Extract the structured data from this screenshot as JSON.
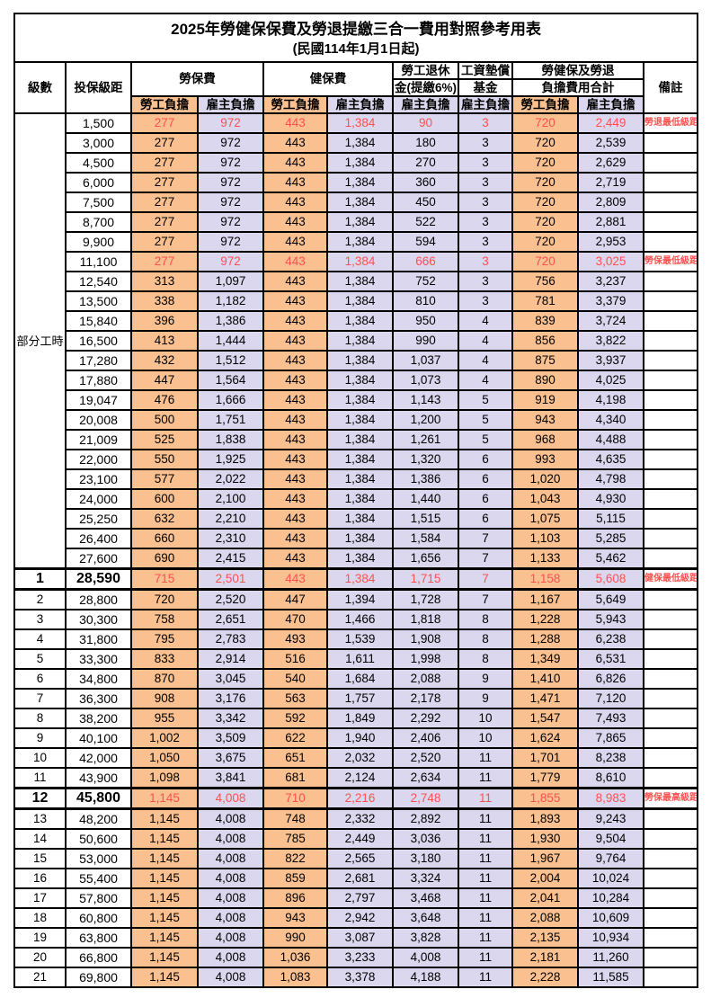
{
  "title": "2025年勞健保保費及勞退提繳三合一費用對照參考用表",
  "subtitle": "(民國114年1月1日起)",
  "colors": {
    "employee_column_bg": "#FAC090",
    "employer_column_bg": "#DBD7EE",
    "highlight_text": "#FF5050",
    "grid_line": "#000000"
  },
  "header": {
    "level": "級數",
    "bracket": "投保級距",
    "labor_insurance": "勞保費",
    "health_insurance": "健保費",
    "pension_line1": "勞工退休",
    "pension_line2": "金(提繳6%)",
    "wage_fund_line1": "工資墊償",
    "wage_fund_line2": "基金",
    "total_line1": "勞健保及勞退",
    "total_line2": "負擔費用合計",
    "remark": "備註",
    "employee": "勞工負擔",
    "employer": "雇主負擔"
  },
  "part_time_label": "部分工時",
  "rows": [
    {
      "level": "",
      "bracket": "1,500",
      "li_emp": "277",
      "li_er": "972",
      "hi_emp": "443",
      "hi_er": "1,384",
      "pension": "90",
      "fund": "3",
      "tot_emp": "720",
      "tot_er": "2,449",
      "remark": "勞退最低級距",
      "highlight": true,
      "bold": false
    },
    {
      "level": "",
      "bracket": "3,000",
      "li_emp": "277",
      "li_er": "972",
      "hi_emp": "443",
      "hi_er": "1,384",
      "pension": "180",
      "fund": "3",
      "tot_emp": "720",
      "tot_er": "2,539",
      "remark": "",
      "highlight": false,
      "bold": false
    },
    {
      "level": "",
      "bracket": "4,500",
      "li_emp": "277",
      "li_er": "972",
      "hi_emp": "443",
      "hi_er": "1,384",
      "pension": "270",
      "fund": "3",
      "tot_emp": "720",
      "tot_er": "2,629",
      "remark": "",
      "highlight": false,
      "bold": false
    },
    {
      "level": "",
      "bracket": "6,000",
      "li_emp": "277",
      "li_er": "972",
      "hi_emp": "443",
      "hi_er": "1,384",
      "pension": "360",
      "fund": "3",
      "tot_emp": "720",
      "tot_er": "2,719",
      "remark": "",
      "highlight": false,
      "bold": false
    },
    {
      "level": "",
      "bracket": "7,500",
      "li_emp": "277",
      "li_er": "972",
      "hi_emp": "443",
      "hi_er": "1,384",
      "pension": "450",
      "fund": "3",
      "tot_emp": "720",
      "tot_er": "2,809",
      "remark": "",
      "highlight": false,
      "bold": false
    },
    {
      "level": "",
      "bracket": "8,700",
      "li_emp": "277",
      "li_er": "972",
      "hi_emp": "443",
      "hi_er": "1,384",
      "pension": "522",
      "fund": "3",
      "tot_emp": "720",
      "tot_er": "2,881",
      "remark": "",
      "highlight": false,
      "bold": false
    },
    {
      "level": "",
      "bracket": "9,900",
      "li_emp": "277",
      "li_er": "972",
      "hi_emp": "443",
      "hi_er": "1,384",
      "pension": "594",
      "fund": "3",
      "tot_emp": "720",
      "tot_er": "2,953",
      "remark": "",
      "highlight": false,
      "bold": false
    },
    {
      "level": "",
      "bracket": "11,100",
      "li_emp": "277",
      "li_er": "972",
      "hi_emp": "443",
      "hi_er": "1,384",
      "pension": "666",
      "fund": "3",
      "tot_emp": "720",
      "tot_er": "3,025",
      "remark": "勞保最低級距",
      "highlight": true,
      "bold": false
    },
    {
      "level": "",
      "bracket": "12,540",
      "li_emp": "313",
      "li_er": "1,097",
      "hi_emp": "443",
      "hi_er": "1,384",
      "pension": "752",
      "fund": "3",
      "tot_emp": "756",
      "tot_er": "3,237",
      "remark": "",
      "highlight": false,
      "bold": false
    },
    {
      "level": "",
      "bracket": "13,500",
      "li_emp": "338",
      "li_er": "1,182",
      "hi_emp": "443",
      "hi_er": "1,384",
      "pension": "810",
      "fund": "3",
      "tot_emp": "781",
      "tot_er": "3,379",
      "remark": "",
      "highlight": false,
      "bold": false
    },
    {
      "level": "",
      "bracket": "15,840",
      "li_emp": "396",
      "li_er": "1,386",
      "hi_emp": "443",
      "hi_er": "1,384",
      "pension": "950",
      "fund": "4",
      "tot_emp": "839",
      "tot_er": "3,724",
      "remark": "",
      "highlight": false,
      "bold": false
    },
    {
      "level": "",
      "bracket": "16,500",
      "li_emp": "413",
      "li_er": "1,444",
      "hi_emp": "443",
      "hi_er": "1,384",
      "pension": "990",
      "fund": "4",
      "tot_emp": "856",
      "tot_er": "3,822",
      "remark": "",
      "highlight": false,
      "bold": false
    },
    {
      "level": "",
      "bracket": "17,280",
      "li_emp": "432",
      "li_er": "1,512",
      "hi_emp": "443",
      "hi_er": "1,384",
      "pension": "1,037",
      "fund": "4",
      "tot_emp": "875",
      "tot_er": "3,937",
      "remark": "",
      "highlight": false,
      "bold": false
    },
    {
      "level": "",
      "bracket": "17,880",
      "li_emp": "447",
      "li_er": "1,564",
      "hi_emp": "443",
      "hi_er": "1,384",
      "pension": "1,073",
      "fund": "4",
      "tot_emp": "890",
      "tot_er": "4,025",
      "remark": "",
      "highlight": false,
      "bold": false
    },
    {
      "level": "",
      "bracket": "19,047",
      "li_emp": "476",
      "li_er": "1,666",
      "hi_emp": "443",
      "hi_er": "1,384",
      "pension": "1,143",
      "fund": "5",
      "tot_emp": "919",
      "tot_er": "4,198",
      "remark": "",
      "highlight": false,
      "bold": false
    },
    {
      "level": "",
      "bracket": "20,008",
      "li_emp": "500",
      "li_er": "1,751",
      "hi_emp": "443",
      "hi_er": "1,384",
      "pension": "1,200",
      "fund": "5",
      "tot_emp": "943",
      "tot_er": "4,340",
      "remark": "",
      "highlight": false,
      "bold": false
    },
    {
      "level": "",
      "bracket": "21,009",
      "li_emp": "525",
      "li_er": "1,838",
      "hi_emp": "443",
      "hi_er": "1,384",
      "pension": "1,261",
      "fund": "5",
      "tot_emp": "968",
      "tot_er": "4,488",
      "remark": "",
      "highlight": false,
      "bold": false
    },
    {
      "level": "",
      "bracket": "22,000",
      "li_emp": "550",
      "li_er": "1,925",
      "hi_emp": "443",
      "hi_er": "1,384",
      "pension": "1,320",
      "fund": "6",
      "tot_emp": "993",
      "tot_er": "4,635",
      "remark": "",
      "highlight": false,
      "bold": false
    },
    {
      "level": "",
      "bracket": "23,100",
      "li_emp": "577",
      "li_er": "2,022",
      "hi_emp": "443",
      "hi_er": "1,384",
      "pension": "1,386",
      "fund": "6",
      "tot_emp": "1,020",
      "tot_er": "4,798",
      "remark": "",
      "highlight": false,
      "bold": false
    },
    {
      "level": "",
      "bracket": "24,000",
      "li_emp": "600",
      "li_er": "2,100",
      "hi_emp": "443",
      "hi_er": "1,384",
      "pension": "1,440",
      "fund": "6",
      "tot_emp": "1,043",
      "tot_er": "4,930",
      "remark": "",
      "highlight": false,
      "bold": false
    },
    {
      "level": "",
      "bracket": "25,250",
      "li_emp": "632",
      "li_er": "2,210",
      "hi_emp": "443",
      "hi_er": "1,384",
      "pension": "1,515",
      "fund": "6",
      "tot_emp": "1,075",
      "tot_er": "5,115",
      "remark": "",
      "highlight": false,
      "bold": false
    },
    {
      "level": "",
      "bracket": "26,400",
      "li_emp": "660",
      "li_er": "2,310",
      "hi_emp": "443",
      "hi_er": "1,384",
      "pension": "1,584",
      "fund": "7",
      "tot_emp": "1,103",
      "tot_er": "5,285",
      "remark": "",
      "highlight": false,
      "bold": false
    },
    {
      "level": "",
      "bracket": "27,600",
      "li_emp": "690",
      "li_er": "2,415",
      "hi_emp": "443",
      "hi_er": "1,384",
      "pension": "1,656",
      "fund": "7",
      "tot_emp": "1,133",
      "tot_er": "5,462",
      "remark": "",
      "highlight": false,
      "bold": false
    },
    {
      "level": "1",
      "bracket": "28,590",
      "li_emp": "715",
      "li_er": "2,501",
      "hi_emp": "443",
      "hi_er": "1,384",
      "pension": "1,715",
      "fund": "7",
      "tot_emp": "1,158",
      "tot_er": "5,608",
      "remark": "健保最低級距",
      "highlight": true,
      "bold": true
    },
    {
      "level": "2",
      "bracket": "28,800",
      "li_emp": "720",
      "li_er": "2,520",
      "hi_emp": "447",
      "hi_er": "1,394",
      "pension": "1,728",
      "fund": "7",
      "tot_emp": "1,167",
      "tot_er": "5,649",
      "remark": "",
      "highlight": false,
      "bold": false
    },
    {
      "level": "3",
      "bracket": "30,300",
      "li_emp": "758",
      "li_er": "2,651",
      "hi_emp": "470",
      "hi_er": "1,466",
      "pension": "1,818",
      "fund": "8",
      "tot_emp": "1,228",
      "tot_er": "5,943",
      "remark": "",
      "highlight": false,
      "bold": false
    },
    {
      "level": "4",
      "bracket": "31,800",
      "li_emp": "795",
      "li_er": "2,783",
      "hi_emp": "493",
      "hi_er": "1,539",
      "pension": "1,908",
      "fund": "8",
      "tot_emp": "1,288",
      "tot_er": "6,238",
      "remark": "",
      "highlight": false,
      "bold": false
    },
    {
      "level": "5",
      "bracket": "33,300",
      "li_emp": "833",
      "li_er": "2,914",
      "hi_emp": "516",
      "hi_er": "1,611",
      "pension": "1,998",
      "fund": "8",
      "tot_emp": "1,349",
      "tot_er": "6,531",
      "remark": "",
      "highlight": false,
      "bold": false
    },
    {
      "level": "6",
      "bracket": "34,800",
      "li_emp": "870",
      "li_er": "3,045",
      "hi_emp": "540",
      "hi_er": "1,684",
      "pension": "2,088",
      "fund": "9",
      "tot_emp": "1,410",
      "tot_er": "6,826",
      "remark": "",
      "highlight": false,
      "bold": false
    },
    {
      "level": "7",
      "bracket": "36,300",
      "li_emp": "908",
      "li_er": "3,176",
      "hi_emp": "563",
      "hi_er": "1,757",
      "pension": "2,178",
      "fund": "9",
      "tot_emp": "1,471",
      "tot_er": "7,120",
      "remark": "",
      "highlight": false,
      "bold": false
    },
    {
      "level": "8",
      "bracket": "38,200",
      "li_emp": "955",
      "li_er": "3,342",
      "hi_emp": "592",
      "hi_er": "1,849",
      "pension": "2,292",
      "fund": "10",
      "tot_emp": "1,547",
      "tot_er": "7,493",
      "remark": "",
      "highlight": false,
      "bold": false
    },
    {
      "level": "9",
      "bracket": "40,100",
      "li_emp": "1,002",
      "li_er": "3,509",
      "hi_emp": "622",
      "hi_er": "1,940",
      "pension": "2,406",
      "fund": "10",
      "tot_emp": "1,624",
      "tot_er": "7,865",
      "remark": "",
      "highlight": false,
      "bold": false
    },
    {
      "level": "10",
      "bracket": "42,000",
      "li_emp": "1,050",
      "li_er": "3,675",
      "hi_emp": "651",
      "hi_er": "2,032",
      "pension": "2,520",
      "fund": "11",
      "tot_emp": "1,701",
      "tot_er": "8,238",
      "remark": "",
      "highlight": false,
      "bold": false
    },
    {
      "level": "11",
      "bracket": "43,900",
      "li_emp": "1,098",
      "li_er": "3,841",
      "hi_emp": "681",
      "hi_er": "2,124",
      "pension": "2,634",
      "fund": "11",
      "tot_emp": "1,779",
      "tot_er": "8,610",
      "remark": "",
      "highlight": false,
      "bold": false
    },
    {
      "level": "12",
      "bracket": "45,800",
      "li_emp": "1,145",
      "li_er": "4,008",
      "hi_emp": "710",
      "hi_er": "2,216",
      "pension": "2,748",
      "fund": "11",
      "tot_emp": "1,855",
      "tot_er": "8,983",
      "remark": "勞保最高級距",
      "highlight": true,
      "bold": true
    },
    {
      "level": "13",
      "bracket": "48,200",
      "li_emp": "1,145",
      "li_er": "4,008",
      "hi_emp": "748",
      "hi_er": "2,332",
      "pension": "2,892",
      "fund": "11",
      "tot_emp": "1,893",
      "tot_er": "9,243",
      "remark": "",
      "highlight": false,
      "bold": false
    },
    {
      "level": "14",
      "bracket": "50,600",
      "li_emp": "1,145",
      "li_er": "4,008",
      "hi_emp": "785",
      "hi_er": "2,449",
      "pension": "3,036",
      "fund": "11",
      "tot_emp": "1,930",
      "tot_er": "9,504",
      "remark": "",
      "highlight": false,
      "bold": false
    },
    {
      "level": "15",
      "bracket": "53,000",
      "li_emp": "1,145",
      "li_er": "4,008",
      "hi_emp": "822",
      "hi_er": "2,565",
      "pension": "3,180",
      "fund": "11",
      "tot_emp": "1,967",
      "tot_er": "9,764",
      "remark": "",
      "highlight": false,
      "bold": false
    },
    {
      "level": "16",
      "bracket": "55,400",
      "li_emp": "1,145",
      "li_er": "4,008",
      "hi_emp": "859",
      "hi_er": "2,681",
      "pension": "3,324",
      "fund": "11",
      "tot_emp": "2,004",
      "tot_er": "10,024",
      "remark": "",
      "highlight": false,
      "bold": false
    },
    {
      "level": "17",
      "bracket": "57,800",
      "li_emp": "1,145",
      "li_er": "4,008",
      "hi_emp": "896",
      "hi_er": "2,797",
      "pension": "3,468",
      "fund": "11",
      "tot_emp": "2,041",
      "tot_er": "10,284",
      "remark": "",
      "highlight": false,
      "bold": false
    },
    {
      "level": "18",
      "bracket": "60,800",
      "li_emp": "1,145",
      "li_er": "4,008",
      "hi_emp": "943",
      "hi_er": "2,942",
      "pension": "3,648",
      "fund": "11",
      "tot_emp": "2,088",
      "tot_er": "10,609",
      "remark": "",
      "highlight": false,
      "bold": false
    },
    {
      "level": "19",
      "bracket": "63,800",
      "li_emp": "1,145",
      "li_er": "4,008",
      "hi_emp": "990",
      "hi_er": "3,087",
      "pension": "3,828",
      "fund": "11",
      "tot_emp": "2,135",
      "tot_er": "10,934",
      "remark": "",
      "highlight": false,
      "bold": false
    },
    {
      "level": "20",
      "bracket": "66,800",
      "li_emp": "1,145",
      "li_er": "4,008",
      "hi_emp": "1,036",
      "hi_er": "3,233",
      "pension": "4,008",
      "fund": "11",
      "tot_emp": "2,181",
      "tot_er": "11,260",
      "remark": "",
      "highlight": false,
      "bold": false
    },
    {
      "level": "21",
      "bracket": "69,800",
      "li_emp": "1,145",
      "li_er": "4,008",
      "hi_emp": "1,083",
      "hi_er": "3,378",
      "pension": "4,188",
      "fund": "11",
      "tot_emp": "2,228",
      "tot_er": "11,585",
      "remark": "",
      "highlight": false,
      "bold": false
    }
  ]
}
